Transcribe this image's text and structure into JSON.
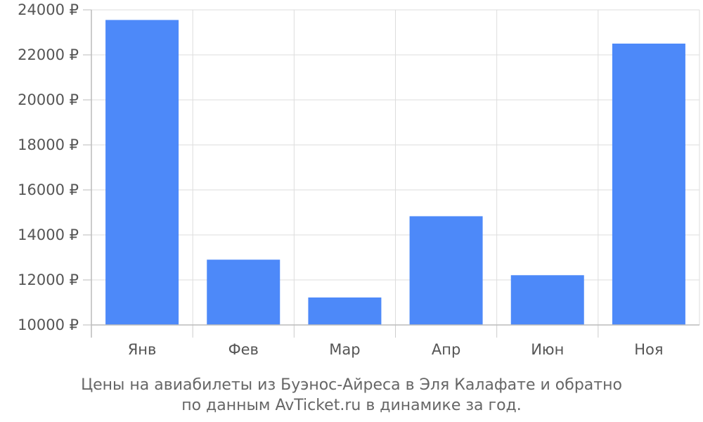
{
  "chart_data": {
    "type": "bar",
    "categories": [
      "Янв",
      "Фев",
      "Мар",
      "Апр",
      "Июн",
      "Ноя"
    ],
    "values": [
      23550,
      12900,
      11220,
      14830,
      12210,
      22500
    ],
    "ylim": [
      10000,
      24000
    ],
    "yticks": [
      10000,
      12000,
      14000,
      16000,
      18000,
      20000,
      22000,
      24000
    ],
    "ytick_suffix": " ₽",
    "title": "",
    "xlabel": "",
    "ylabel": "",
    "grid": true,
    "bar_color": "#4d89f9"
  },
  "caption": {
    "line1": "Цены на авиабилеты из Буэнос-Айреса в Эля Калафате и обратно",
    "line2": "по данным AvTicket.ru в динамике за год."
  }
}
